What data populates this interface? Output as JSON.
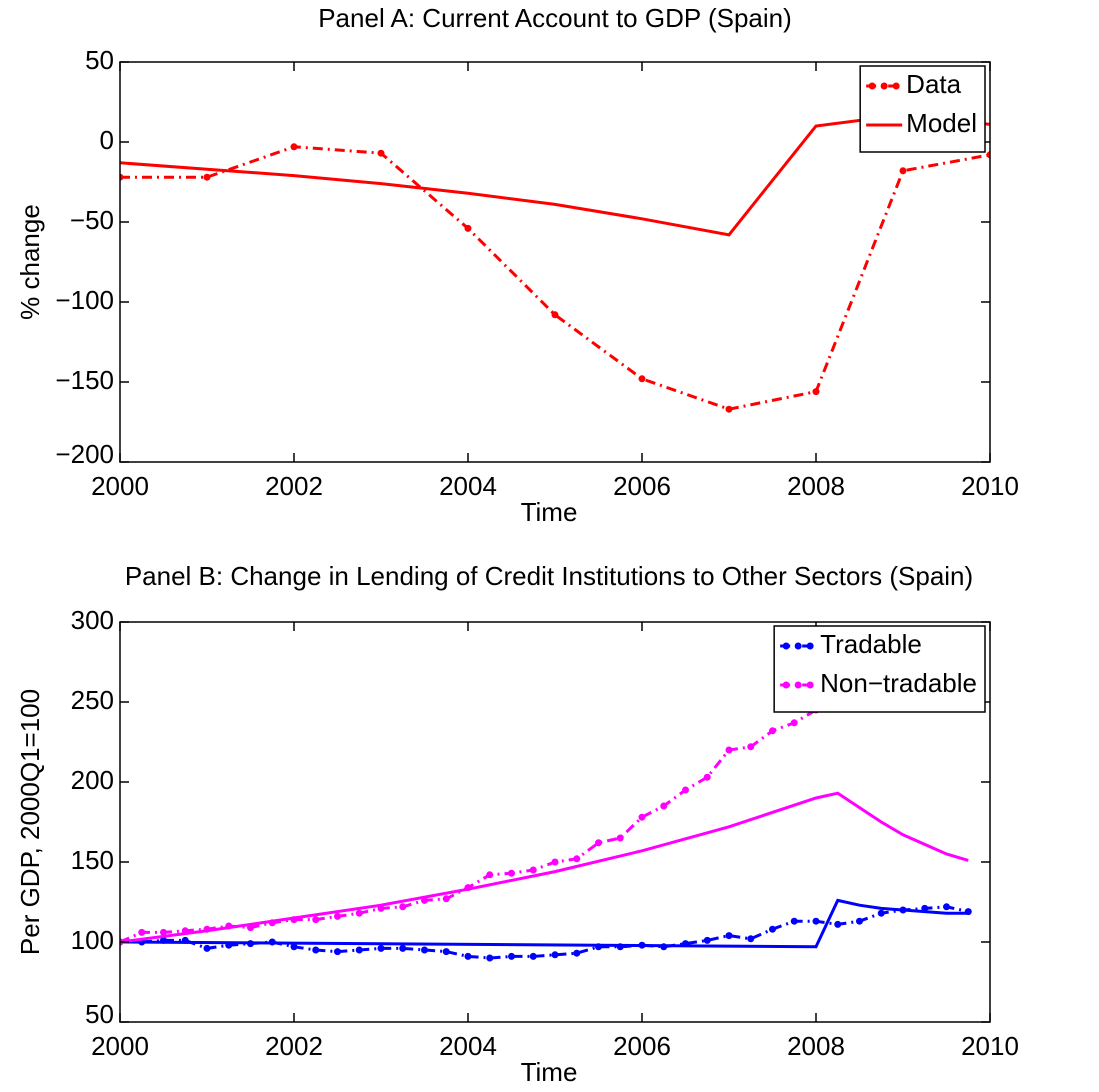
{
  "chart_data": [
    {
      "type": "line",
      "title": "Panel A: Current Account to GDP (Spain)",
      "x_label": "Time",
      "y_label": "% change",
      "xlim": [
        2000,
        2010
      ],
      "xticks": [
        2000,
        2002,
        2004,
        2006,
        2008,
        2010
      ],
      "ylim": [
        -200,
        50
      ],
      "yticks": [
        {
          "value": -200,
          "label": "−200"
        },
        {
          "value": -150,
          "label": "−150"
        },
        {
          "value": -100,
          "label": "−100"
        },
        {
          "value": -50,
          "label": "−50"
        },
        0,
        50
      ],
      "grid": false,
      "legend": "upper right",
      "series": [
        {
          "name": "Data",
          "color": "#ff0000",
          "linestyle": "dashdot",
          "marker": "o",
          "x": [
            2000,
            2001,
            2002,
            2003,
            2004,
            2005,
            2006,
            2007,
            2008,
            2009,
            2010
          ],
          "values": [
            -22,
            -22,
            -3,
            -7,
            -54,
            -108,
            -148,
            -167,
            -156,
            -18,
            -8
          ]
        },
        {
          "name": "Model",
          "color": "#ff0000",
          "linestyle": "solid",
          "marker": null,
          "x": [
            2000,
            2001,
            2002,
            2003,
            2004,
            2005,
            2006,
            2007,
            2008,
            2009,
            2010
          ],
          "values": [
            -13,
            -17,
            -21,
            -26,
            -32,
            -39,
            -48,
            -58,
            10,
            17,
            11
          ]
        }
      ]
    },
    {
      "type": "line",
      "title": "Panel B: Change in Lending of Credit Institutions to Other Sectors (Spain)",
      "x_label": "Time",
      "y_label": "Per GDP, 2000Q1=100",
      "xlim": [
        2000,
        2010
      ],
      "xticks": [
        2000,
        2002,
        2004,
        2006,
        2008,
        2010
      ],
      "ylim": [
        50,
        300
      ],
      "yticks": [
        50,
        100,
        150,
        200,
        250,
        300
      ],
      "grid": false,
      "legend": "upper right",
      "series": [
        {
          "name": "Tradable",
          "color": "#0000ff",
          "linestyle": "dashdot",
          "marker": "o",
          "x": [
            2000,
            2000.25,
            2000.5,
            2000.75,
            2001,
            2001.25,
            2001.5,
            2001.75,
            2002,
            2002.25,
            2002.5,
            2002.75,
            2003,
            2003.25,
            2003.5,
            2003.75,
            2004,
            2004.25,
            2004.5,
            2004.75,
            2005,
            2005.25,
            2005.5,
            2005.75,
            2006,
            2006.25,
            2006.5,
            2006.75,
            2007,
            2007.25,
            2007.5,
            2007.75,
            2008,
            2008.25,
            2008.5,
            2008.75,
            2009,
            2009.25,
            2009.5,
            2009.75
          ],
          "values": [
            100,
            100,
            101,
            101,
            96,
            98,
            99,
            100,
            97,
            95,
            94,
            95,
            96,
            96,
            95,
            94,
            91,
            90,
            91,
            91,
            92,
            93,
            97,
            97,
            98,
            97,
            99,
            101,
            104,
            102,
            108,
            113,
            113,
            111,
            113,
            118,
            120,
            121,
            122,
            119
          ]
        },
        {
          "name": null,
          "color": "#0000ff",
          "linestyle": "solid",
          "marker": null,
          "x": [
            2000,
            2008,
            2008.25,
            2008.5,
            2008.75,
            2009,
            2009.25,
            2009.5,
            2009.75
          ],
          "values": [
            100,
            97,
            126,
            123,
            121,
            120,
            119,
            118,
            118
          ]
        },
        {
          "name": "Non−tradable",
          "color": "#ff00ff",
          "linestyle": "dashdot",
          "marker": "o",
          "x": [
            2000,
            2000.25,
            2000.5,
            2000.75,
            2001,
            2001.25,
            2001.5,
            2001.75,
            2002,
            2002.25,
            2002.5,
            2002.75,
            2003,
            2003.25,
            2003.5,
            2003.75,
            2004,
            2004.25,
            2004.5,
            2004.75,
            2005,
            2005.25,
            2005.5,
            2005.75,
            2006,
            2006.25,
            2006.5,
            2006.75,
            2007,
            2007.25,
            2007.5,
            2007.75,
            2008
          ],
          "values": [
            100,
            106,
            106,
            107,
            108,
            110,
            109,
            112,
            114,
            114,
            116,
            118,
            121,
            122,
            126,
            127,
            134,
            142,
            143,
            145,
            150,
            152,
            162,
            165,
            178,
            185,
            195,
            203,
            220,
            222,
            232,
            237,
            245
          ]
        },
        {
          "name": null,
          "color": "#ff00ff",
          "linestyle": "solid",
          "marker": null,
          "x": [
            2000,
            2001,
            2002,
            2003,
            2004,
            2005,
            2006,
            2007,
            2008,
            2008.25,
            2008.5,
            2008.75,
            2009,
            2009.25,
            2009.5,
            2009.75
          ],
          "values": [
            100,
            107,
            115,
            123,
            133,
            144,
            157,
            172,
            190,
            193,
            184,
            175,
            167,
            161,
            155,
            151
          ]
        }
      ]
    }
  ]
}
